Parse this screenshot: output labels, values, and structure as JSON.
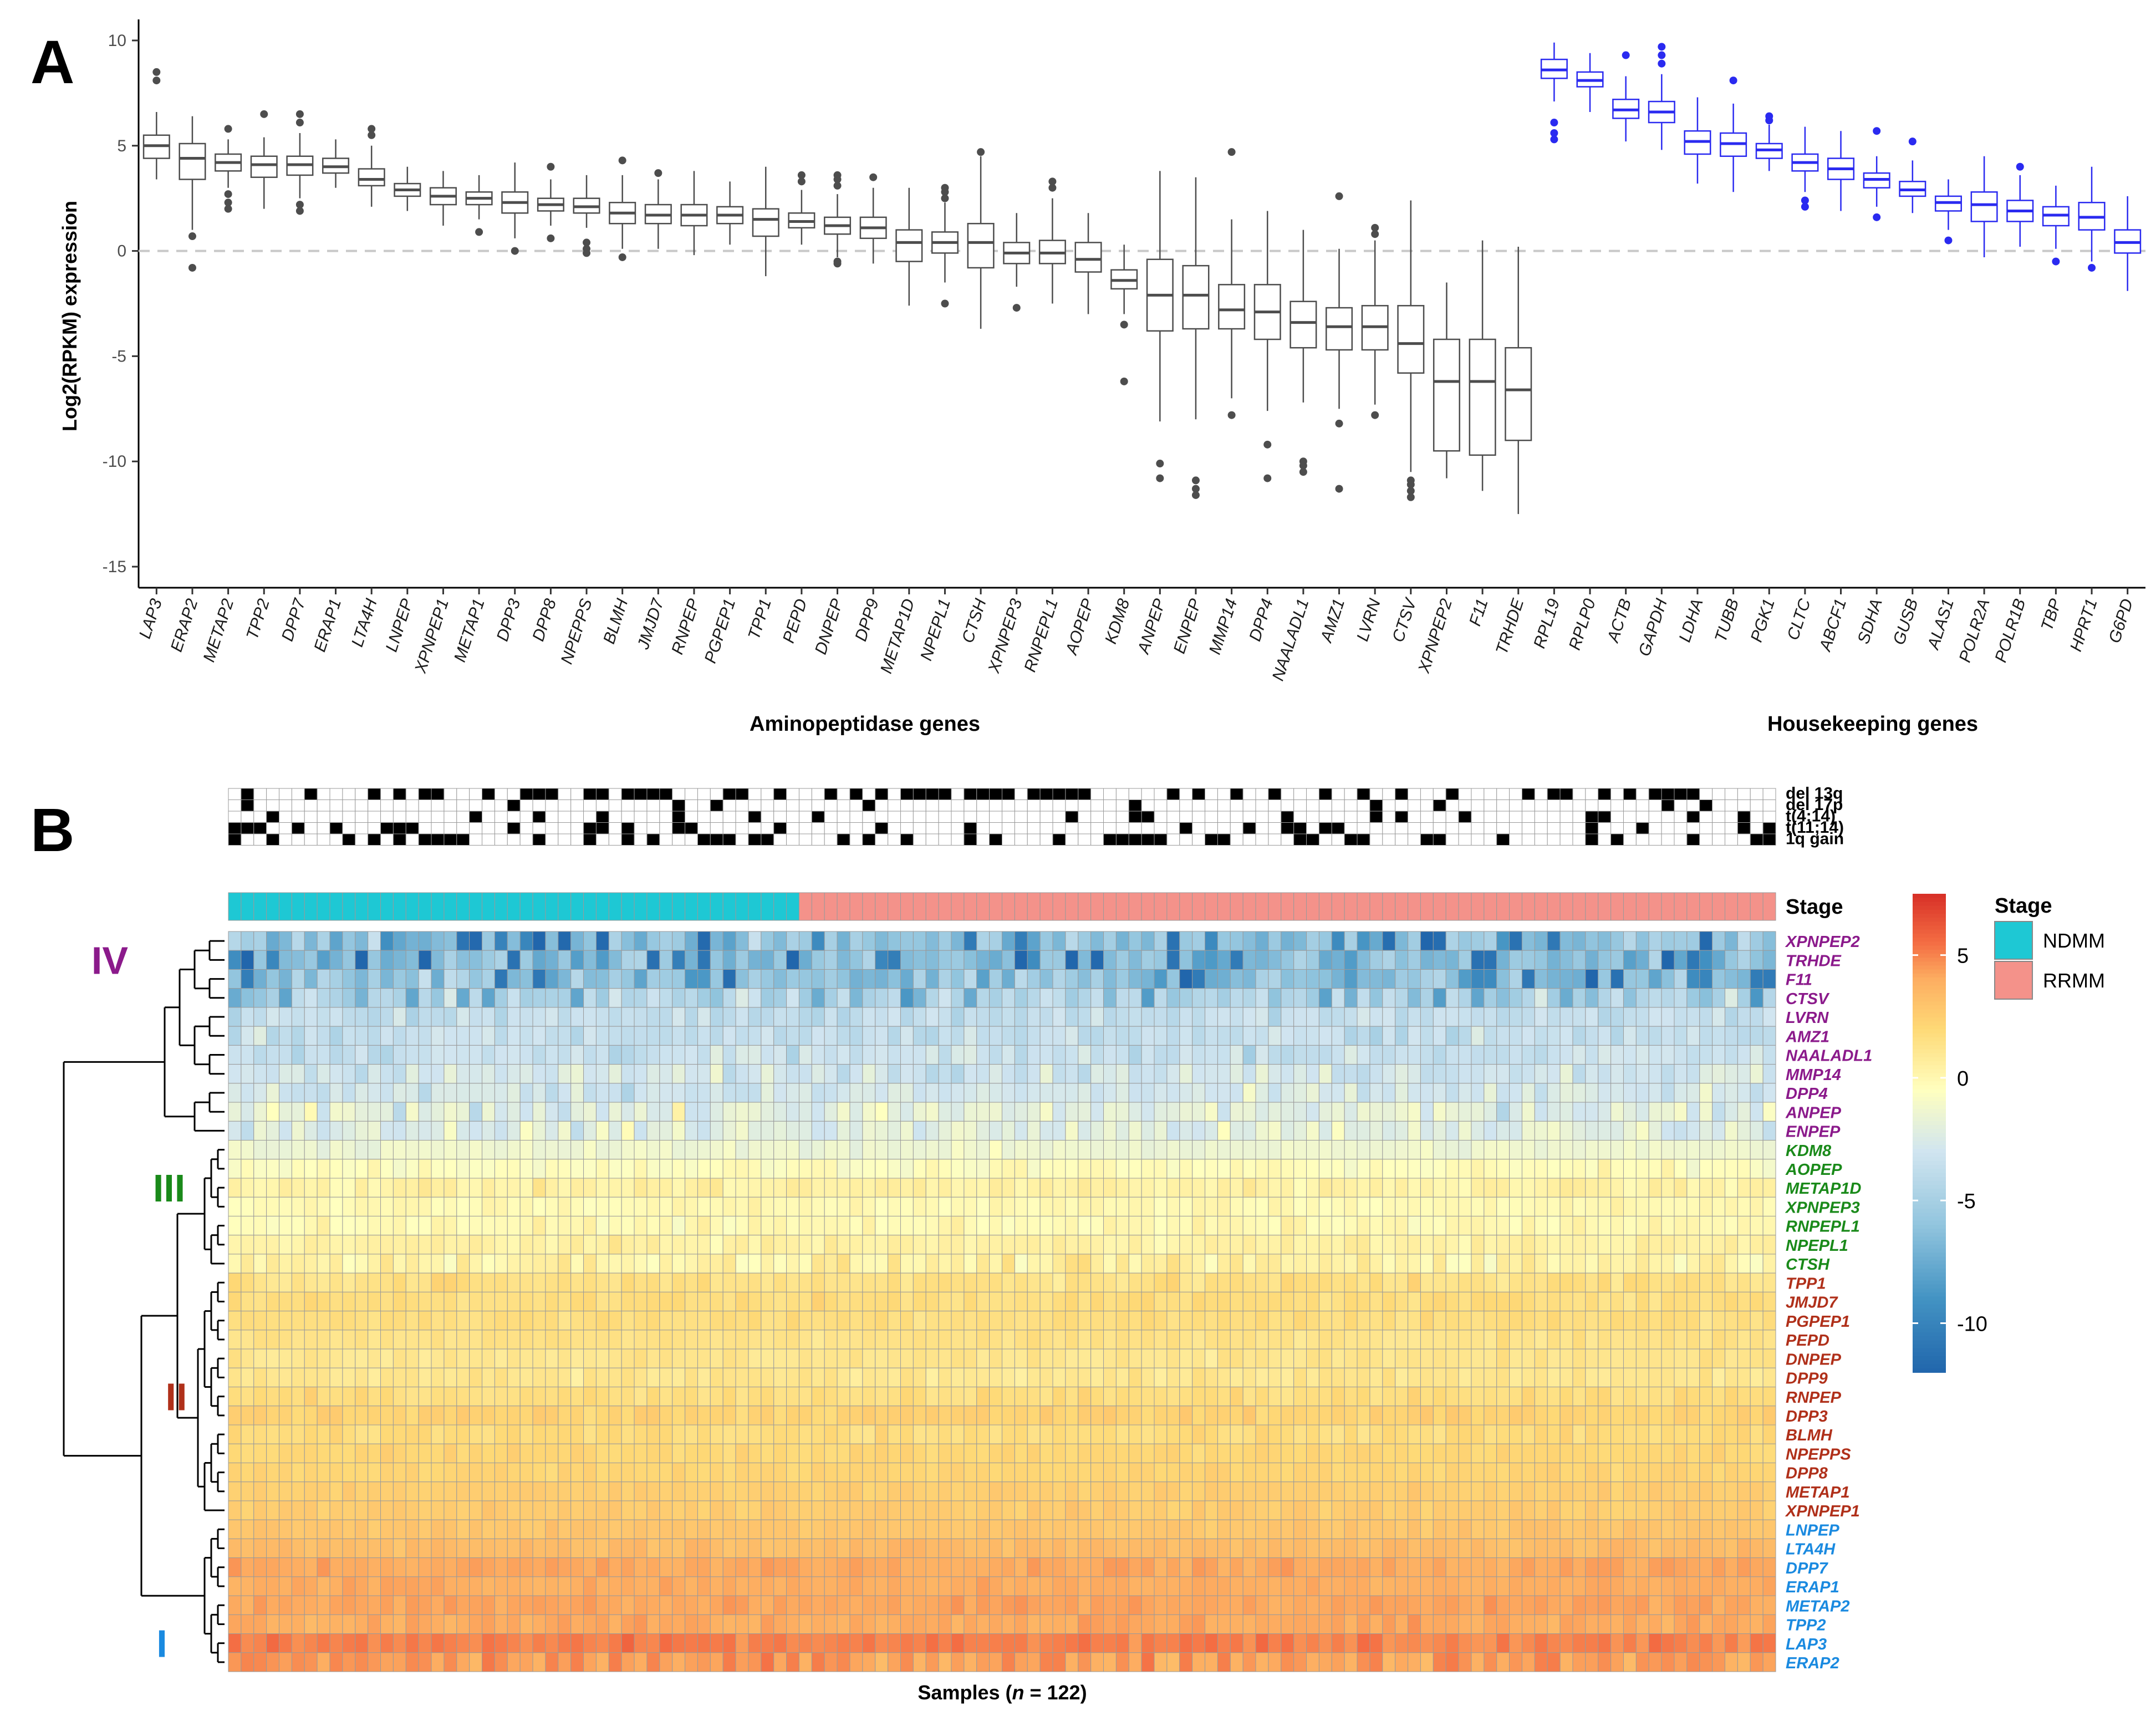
{
  "panels": {
    "a": "A",
    "b": "B"
  },
  "chart_data": [
    {
      "type": "box",
      "panel": "A",
      "ylabel": "Log2(RPKM) expression",
      "ylim": [
        -16,
        11
      ],
      "yticks": [
        10,
        5,
        0,
        -5,
        -10,
        -15
      ],
      "reference_line": 0,
      "groups": [
        {
          "name": "Aminopeptidase genes",
          "color": "#4d4d4d"
        },
        {
          "name": "Housekeeping genes",
          "color": "#2a2af0"
        }
      ],
      "genes": [
        {
          "g": "LAP3",
          "grp": 0,
          "med": 5.0,
          "q1": 4.4,
          "q3": 5.5,
          "lo": 3.4,
          "hi": 6.6,
          "out": [
            8.1,
            8.5
          ]
        },
        {
          "g": "ERAP2",
          "grp": 0,
          "med": 4.4,
          "q1": 3.4,
          "q3": 5.1,
          "lo": 1.0,
          "hi": 6.4,
          "out": [
            0.7,
            -0.8
          ]
        },
        {
          "g": "METAP2",
          "grp": 0,
          "med": 4.2,
          "q1": 3.8,
          "q3": 4.6,
          "lo": 3.0,
          "hi": 5.3,
          "out": [
            5.8,
            2.7,
            2.3,
            2.0
          ]
        },
        {
          "g": "TPP2",
          "grp": 0,
          "med": 4.1,
          "q1": 3.5,
          "q3": 4.5,
          "lo": 2.0,
          "hi": 5.4,
          "out": [
            6.5
          ]
        },
        {
          "g": "DPP7",
          "grp": 0,
          "med": 4.1,
          "q1": 3.6,
          "q3": 4.5,
          "lo": 2.5,
          "hi": 5.6,
          "out": [
            6.5,
            6.1,
            2.2,
            1.9
          ]
        },
        {
          "g": "ERAP1",
          "grp": 0,
          "med": 4.0,
          "q1": 3.7,
          "q3": 4.4,
          "lo": 3.0,
          "hi": 5.3,
          "out": []
        },
        {
          "g": "LTA4H",
          "grp": 0,
          "med": 3.4,
          "q1": 3.1,
          "q3": 3.9,
          "lo": 2.1,
          "hi": 5.0,
          "out": [
            5.5,
            5.8
          ]
        },
        {
          "g": "LNPEP",
          "grp": 0,
          "med": 2.9,
          "q1": 2.6,
          "q3": 3.2,
          "lo": 1.9,
          "hi": 4.0,
          "out": []
        },
        {
          "g": "XPNPEP1",
          "grp": 0,
          "med": 2.6,
          "q1": 2.2,
          "q3": 3.0,
          "lo": 1.2,
          "hi": 3.8,
          "out": []
        },
        {
          "g": "METAP1",
          "grp": 0,
          "med": 2.5,
          "q1": 2.2,
          "q3": 2.8,
          "lo": 1.5,
          "hi": 3.6,
          "out": [
            0.9
          ]
        },
        {
          "g": "DPP3",
          "grp": 0,
          "med": 2.3,
          "q1": 1.8,
          "q3": 2.8,
          "lo": 0.6,
          "hi": 4.2,
          "out": [
            0.0
          ]
        },
        {
          "g": "DPP8",
          "grp": 0,
          "med": 2.2,
          "q1": 1.9,
          "q3": 2.5,
          "lo": 1.2,
          "hi": 3.4,
          "out": [
            4.0,
            0.6
          ]
        },
        {
          "g": "NPEPPS",
          "grp": 0,
          "med": 2.1,
          "q1": 1.8,
          "q3": 2.5,
          "lo": 1.1,
          "hi": 3.6,
          "out": [
            0.4,
            0.1,
            -0.1
          ]
        },
        {
          "g": "BLMH",
          "grp": 0,
          "med": 1.8,
          "q1": 1.3,
          "q3": 2.3,
          "lo": 0.1,
          "hi": 3.6,
          "out": [
            4.3,
            -0.3
          ]
        },
        {
          "g": "JMJD7",
          "grp": 0,
          "med": 1.7,
          "q1": 1.3,
          "q3": 2.2,
          "lo": 0.1,
          "hi": 3.4,
          "out": [
            3.7
          ]
        },
        {
          "g": "RNPEP",
          "grp": 0,
          "med": 1.7,
          "q1": 1.2,
          "q3": 2.2,
          "lo": -0.2,
          "hi": 3.8,
          "out": []
        },
        {
          "g": "PGPEP1",
          "grp": 0,
          "med": 1.7,
          "q1": 1.3,
          "q3": 2.1,
          "lo": 0.3,
          "hi": 3.3,
          "out": []
        },
        {
          "g": "TPP1",
          "grp": 0,
          "med": 1.5,
          "q1": 0.7,
          "q3": 2.0,
          "lo": -1.2,
          "hi": 4.0,
          "out": []
        },
        {
          "g": "PEPD",
          "grp": 0,
          "med": 1.4,
          "q1": 1.1,
          "q3": 1.8,
          "lo": 0.3,
          "hi": 2.9,
          "out": [
            3.6,
            3.3
          ]
        },
        {
          "g": "DNPEP",
          "grp": 0,
          "med": 1.2,
          "q1": 0.8,
          "q3": 1.6,
          "lo": -0.3,
          "hi": 2.7,
          "out": [
            3.6,
            3.4,
            3.1,
            -0.5,
            -0.6
          ]
        },
        {
          "g": "DPP9",
          "grp": 0,
          "med": 1.1,
          "q1": 0.6,
          "q3": 1.6,
          "lo": -0.6,
          "hi": 3.0,
          "out": [
            3.5
          ]
        },
        {
          "g": "METAP1D",
          "grp": 0,
          "med": 0.4,
          "q1": -0.5,
          "q3": 1.0,
          "lo": -2.6,
          "hi": 3.0,
          "out": []
        },
        {
          "g": "NPEPL1",
          "grp": 0,
          "med": 0.4,
          "q1": -0.1,
          "q3": 0.9,
          "lo": -1.5,
          "hi": 2.3,
          "out": [
            3.0,
            2.8,
            2.5,
            -2.5
          ]
        },
        {
          "g": "CTSH",
          "grp": 0,
          "med": 0.4,
          "q1": -0.8,
          "q3": 1.3,
          "lo": -3.7,
          "hi": 4.5,
          "out": [
            4.7
          ]
        },
        {
          "g": "XPNPEP3",
          "grp": 0,
          "med": -0.1,
          "q1": -0.6,
          "q3": 0.4,
          "lo": -1.7,
          "hi": 1.8,
          "out": [
            -2.7
          ]
        },
        {
          "g": "RNPEPL1",
          "grp": 0,
          "med": -0.1,
          "q1": -0.6,
          "q3": 0.5,
          "lo": -2.5,
          "hi": 2.5,
          "out": [
            3.3,
            3.0
          ]
        },
        {
          "g": "AOPEP",
          "grp": 0,
          "med": -0.4,
          "q1": -1.0,
          "q3": 0.4,
          "lo": -3.0,
          "hi": 1.8,
          "out": []
        },
        {
          "g": "KDM8",
          "grp": 0,
          "med": -1.4,
          "q1": -1.8,
          "q3": -0.9,
          "lo": -3.0,
          "hi": 0.3,
          "out": [
            -3.5,
            -6.2
          ]
        },
        {
          "g": "ANPEP",
          "grp": 0,
          "med": -2.1,
          "q1": -3.8,
          "q3": -0.4,
          "lo": -8.1,
          "hi": 3.8,
          "out": [
            -10.1,
            -10.8
          ]
        },
        {
          "g": "ENPEP",
          "grp": 0,
          "med": -2.1,
          "q1": -3.7,
          "q3": -0.7,
          "lo": -8.0,
          "hi": 3.5,
          "out": [
            -10.9,
            -11.3,
            -11.6
          ]
        },
        {
          "g": "MMP14",
          "grp": 0,
          "med": -2.8,
          "q1": -3.7,
          "q3": -1.6,
          "lo": -7.0,
          "hi": 1.5,
          "out": [
            4.7,
            -7.8
          ]
        },
        {
          "g": "DPP4",
          "grp": 0,
          "med": -2.9,
          "q1": -4.2,
          "q3": -1.6,
          "lo": -7.6,
          "hi": 1.9,
          "out": [
            -9.2,
            -10.8
          ]
        },
        {
          "g": "NAALADL1",
          "grp": 0,
          "med": -3.4,
          "q1": -4.6,
          "q3": -2.4,
          "lo": -7.2,
          "hi": 1.0,
          "out": [
            -10.0,
            -10.2,
            -10.5
          ]
        },
        {
          "g": "AMZ1",
          "grp": 0,
          "med": -3.6,
          "q1": -4.7,
          "q3": -2.7,
          "lo": -7.5,
          "hi": 0.1,
          "out": [
            2.6,
            -8.2,
            -11.3
          ]
        },
        {
          "g": "LVRN",
          "grp": 0,
          "med": -3.6,
          "q1": -4.7,
          "q3": -2.6,
          "lo": -7.3,
          "hi": 0.5,
          "out": [
            1.1,
            0.8,
            -7.8
          ]
        },
        {
          "g": "CTSV",
          "grp": 0,
          "med": -4.4,
          "q1": -5.8,
          "q3": -2.6,
          "lo": -10.5,
          "hi": 2.4,
          "out": [
            -10.9,
            -11.1,
            -11.4,
            -11.7
          ]
        },
        {
          "g": "XPNPEP2",
          "grp": 0,
          "med": -6.2,
          "q1": -9.5,
          "q3": -4.2,
          "lo": -10.8,
          "hi": -1.5,
          "out": []
        },
        {
          "g": "F11",
          "grp": 0,
          "med": -6.2,
          "q1": -9.7,
          "q3": -4.2,
          "lo": -11.4,
          "hi": 0.5,
          "out": []
        },
        {
          "g": "TRHDE",
          "grp": 0,
          "med": -6.6,
          "q1": -9.0,
          "q3": -4.6,
          "lo": -12.5,
          "hi": 0.2,
          "out": []
        },
        {
          "g": "RPL19",
          "grp": 1,
          "med": 8.6,
          "q1": 8.2,
          "q3": 9.1,
          "lo": 7.1,
          "hi": 9.9,
          "out": [
            6.1,
            5.6,
            5.3
          ]
        },
        {
          "g": "RPLP0",
          "grp": 1,
          "med": 8.1,
          "q1": 7.8,
          "q3": 8.5,
          "lo": 6.6,
          "hi": 9.4,
          "out": []
        },
        {
          "g": "ACTB",
          "grp": 1,
          "med": 6.7,
          "q1": 6.3,
          "q3": 7.2,
          "lo": 5.2,
          "hi": 8.3,
          "out": [
            9.3
          ]
        },
        {
          "g": "GAPDH",
          "grp": 1,
          "med": 6.6,
          "q1": 6.1,
          "q3": 7.1,
          "lo": 4.8,
          "hi": 8.4,
          "out": [
            9.7,
            9.3,
            8.9
          ]
        },
        {
          "g": "LDHA",
          "grp": 1,
          "med": 5.2,
          "q1": 4.6,
          "q3": 5.7,
          "lo": 3.2,
          "hi": 7.3,
          "out": []
        },
        {
          "g": "TUBB",
          "grp": 1,
          "med": 5.1,
          "q1": 4.5,
          "q3": 5.6,
          "lo": 2.8,
          "hi": 7.0,
          "out": [
            8.1
          ]
        },
        {
          "g": "PGK1",
          "grp": 1,
          "med": 4.8,
          "q1": 4.4,
          "q3": 5.1,
          "lo": 3.8,
          "hi": 6.0,
          "out": [
            6.4,
            6.2
          ]
        },
        {
          "g": "CLTC",
          "grp": 1,
          "med": 4.2,
          "q1": 3.8,
          "q3": 4.6,
          "lo": 2.8,
          "hi": 5.9,
          "out": [
            2.4,
            2.1
          ]
        },
        {
          "g": "ABCF1",
          "grp": 1,
          "med": 3.9,
          "q1": 3.4,
          "q3": 4.4,
          "lo": 1.9,
          "hi": 5.7,
          "out": []
        },
        {
          "g": "SDHA",
          "grp": 1,
          "med": 3.4,
          "q1": 3.0,
          "q3": 3.7,
          "lo": 2.1,
          "hi": 4.5,
          "out": [
            5.7,
            1.6
          ]
        },
        {
          "g": "GUSB",
          "grp": 1,
          "med": 2.9,
          "q1": 2.6,
          "q3": 3.3,
          "lo": 1.8,
          "hi": 4.3,
          "out": [
            5.2
          ]
        },
        {
          "g": "ALAS1",
          "grp": 1,
          "med": 2.3,
          "q1": 1.9,
          "q3": 2.6,
          "lo": 1.0,
          "hi": 3.4,
          "out": [
            0.5
          ]
        },
        {
          "g": "POLR2A",
          "grp": 1,
          "med": 2.2,
          "q1": 1.4,
          "q3": 2.8,
          "lo": -0.3,
          "hi": 4.5,
          "out": []
        },
        {
          "g": "POLR1B",
          "grp": 1,
          "med": 1.9,
          "q1": 1.4,
          "q3": 2.4,
          "lo": 0.2,
          "hi": 3.6,
          "out": [
            4.0
          ]
        },
        {
          "g": "TBP",
          "grp": 1,
          "med": 1.7,
          "q1": 1.2,
          "q3": 2.1,
          "lo": 0.1,
          "hi": 3.1,
          "out": [
            -0.5
          ]
        },
        {
          "g": "HPRT1",
          "grp": 1,
          "med": 1.6,
          "q1": 1.0,
          "q3": 2.3,
          "lo": -0.5,
          "hi": 4.0,
          "out": [
            -0.8
          ]
        },
        {
          "g": "G6PD",
          "grp": 1,
          "med": 0.4,
          "q1": -0.1,
          "q3": 1.0,
          "lo": -1.9,
          "hi": 2.6,
          "out": []
        }
      ]
    },
    {
      "type": "heatmap",
      "panel": "B",
      "xlabel_prefix": "Samples (",
      "xlabel_n": "n",
      "xlabel_suffix": " = 122)",
      "n_samples": 122,
      "n_ndmm": 45,
      "cytogenetics": [
        "del 13q",
        "del 17p",
        "t(4;14)",
        "t(11;14)",
        "1q gain"
      ],
      "stage_title": "Stage",
      "stage_legend": [
        {
          "label": "NDMM",
          "color": "#1ec8d4"
        },
        {
          "label": "RRMM",
          "color": "#f4928a"
        }
      ],
      "colorbar": {
        "min": -12,
        "max": 7.5,
        "ticks": [
          5,
          0,
          -5,
          -10
        ]
      },
      "clusters": [
        {
          "label": "IV",
          "color": "#8b1a8b"
        },
        {
          "label": "III",
          "color": "#1a8a1a"
        },
        {
          "label": "II",
          "color": "#b0301a"
        },
        {
          "label": "I",
          "color": "#1a8ae0"
        }
      ],
      "rows": [
        {
          "g": "XPNPEP2",
          "cl": 0,
          "base": -6.0,
          "sd": 3.0
        },
        {
          "g": "TRHDE",
          "cl": 0,
          "base": -6.4,
          "sd": 3.0
        },
        {
          "g": "F11",
          "cl": 0,
          "base": -6.2,
          "sd": 3.0
        },
        {
          "g": "CTSV",
          "cl": 0,
          "base": -4.4,
          "sd": 2.2
        },
        {
          "g": "LVRN",
          "cl": 0,
          "base": -3.6,
          "sd": 1.4
        },
        {
          "g": "AMZ1",
          "cl": 0,
          "base": -3.6,
          "sd": 1.4
        },
        {
          "g": "NAALADL1",
          "cl": 0,
          "base": -3.4,
          "sd": 1.5
        },
        {
          "g": "MMP14",
          "cl": 0,
          "base": -2.8,
          "sd": 1.6
        },
        {
          "g": "DPP4",
          "cl": 0,
          "base": -2.9,
          "sd": 1.7
        },
        {
          "g": "ANPEP",
          "cl": 0,
          "base": -2.1,
          "sd": 2.0
        },
        {
          "g": "ENPEP",
          "cl": 0,
          "base": -2.1,
          "sd": 2.0
        },
        {
          "g": "KDM8",
          "cl": 1,
          "base": -1.4,
          "sd": 0.7
        },
        {
          "g": "AOPEP",
          "cl": 1,
          "base": -0.4,
          "sd": 0.9
        },
        {
          "g": "METAP1D",
          "cl": 1,
          "base": 0.4,
          "sd": 0.9
        },
        {
          "g": "XPNPEP3",
          "cl": 1,
          "base": -0.1,
          "sd": 0.7
        },
        {
          "g": "RNPEPL1",
          "cl": 1,
          "base": -0.1,
          "sd": 0.8
        },
        {
          "g": "NPEPL1",
          "cl": 1,
          "base": 0.4,
          "sd": 0.7
        },
        {
          "g": "CTSH",
          "cl": 1,
          "base": 0.4,
          "sd": 1.4
        },
        {
          "g": "TPP1",
          "cl": 2,
          "base": 1.5,
          "sd": 0.9
        },
        {
          "g": "JMJD7",
          "cl": 2,
          "base": 1.7,
          "sd": 0.6
        },
        {
          "g": "PGPEP1",
          "cl": 2,
          "base": 1.7,
          "sd": 0.6
        },
        {
          "g": "PEPD",
          "cl": 2,
          "base": 1.4,
          "sd": 0.5
        },
        {
          "g": "DNPEP",
          "cl": 2,
          "base": 1.2,
          "sd": 0.6
        },
        {
          "g": "DPP9",
          "cl": 2,
          "base": 1.1,
          "sd": 0.7
        },
        {
          "g": "RNPEP",
          "cl": 2,
          "base": 1.7,
          "sd": 0.7
        },
        {
          "g": "DPP3",
          "cl": 2,
          "base": 2.3,
          "sd": 0.7
        },
        {
          "g": "BLMH",
          "cl": 2,
          "base": 1.8,
          "sd": 0.7
        },
        {
          "g": "NPEPPS",
          "cl": 2,
          "base": 2.1,
          "sd": 0.5
        },
        {
          "g": "DPP8",
          "cl": 2,
          "base": 2.2,
          "sd": 0.4
        },
        {
          "g": "METAP1",
          "cl": 2,
          "base": 2.5,
          "sd": 0.4
        },
        {
          "g": "XPNPEP1",
          "cl": 2,
          "base": 2.6,
          "sd": 0.5
        },
        {
          "g": "LNPEP",
          "cl": 3,
          "base": 2.9,
          "sd": 0.4
        },
        {
          "g": "LTA4H",
          "cl": 3,
          "base": 3.4,
          "sd": 0.6
        },
        {
          "g": "DPP7",
          "cl": 3,
          "base": 4.1,
          "sd": 0.6
        },
        {
          "g": "ERAP1",
          "cl": 3,
          "base": 4.0,
          "sd": 0.5
        },
        {
          "g": "METAP2",
          "cl": 3,
          "base": 4.2,
          "sd": 0.5
        },
        {
          "g": "TPP2",
          "cl": 3,
          "base": 4.1,
          "sd": 0.6
        },
        {
          "g": "LAP3",
          "cl": 3,
          "base": 5.0,
          "sd": 0.8
        },
        {
          "g": "ERAP2",
          "cl": 3,
          "base": 4.4,
          "sd": 1.2
        }
      ]
    }
  ]
}
